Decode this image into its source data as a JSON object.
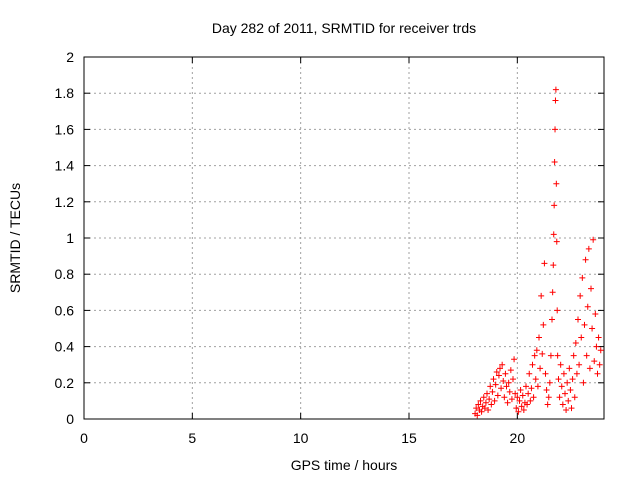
{
  "chart_data": {
    "type": "scatter",
    "title": "Day 282 of 2011, SRMTID for receiver trds",
    "xlabel": "GPS time / hours",
    "ylabel": "SRMTID / TECUs",
    "xlim": [
      0,
      24
    ],
    "ylim": [
      0,
      2
    ],
    "xticks": [
      0,
      5,
      10,
      15,
      20
    ],
    "yticks": [
      0,
      0.2,
      0.4,
      0.6,
      0.8,
      1,
      1.2,
      1.4,
      1.6,
      1.8,
      2
    ],
    "xtick_labels": [
      "0",
      "5",
      "10",
      "15",
      "20"
    ],
    "ytick_labels": [
      "0",
      "0.2",
      "0.4",
      "0.6",
      "0.8",
      "1",
      "1.2",
      "1.4",
      "1.6",
      "1.8",
      "2"
    ],
    "grid": true,
    "marker": "plus",
    "series": [
      {
        "color": "#ff0000",
        "points": [
          [
            18.05,
            0.03
          ],
          [
            18.1,
            0.06
          ],
          [
            18.15,
            0.02
          ],
          [
            18.2,
            0.08
          ],
          [
            18.25,
            0.05
          ],
          [
            18.3,
            0.1
          ],
          [
            18.35,
            0.04
          ],
          [
            18.4,
            0.07
          ],
          [
            18.45,
            0.12
          ],
          [
            18.5,
            0.06
          ],
          [
            18.55,
            0.09
          ],
          [
            18.6,
            0.14
          ],
          [
            18.65,
            0.05
          ],
          [
            18.7,
            0.11
          ],
          [
            18.75,
            0.18
          ],
          [
            18.8,
            0.08
          ],
          [
            18.85,
            0.15
          ],
          [
            18.9,
            0.22
          ],
          [
            18.95,
            0.1
          ],
          [
            19.0,
            0.19
          ],
          [
            19.05,
            0.26
          ],
          [
            19.1,
            0.13
          ],
          [
            19.15,
            0.24
          ],
          [
            19.2,
            0.28
          ],
          [
            19.25,
            0.17
          ],
          [
            19.3,
            0.3
          ],
          [
            19.35,
            0.21
          ],
          [
            19.4,
            0.12
          ],
          [
            19.45,
            0.25
          ],
          [
            19.5,
            0.18
          ],
          [
            19.55,
            0.09
          ],
          [
            19.6,
            0.2
          ],
          [
            19.65,
            0.15
          ],
          [
            19.7,
            0.27
          ],
          [
            19.75,
            0.11
          ],
          [
            19.8,
            0.22
          ],
          [
            19.85,
            0.33
          ],
          [
            19.9,
            0.14
          ],
          [
            19.95,
            0.06
          ],
          [
            20.0,
            0.12
          ],
          [
            20.05,
            0.04
          ],
          [
            20.1,
            0.1
          ],
          [
            20.15,
            0.16
          ],
          [
            20.2,
            0.07
          ],
          [
            20.25,
            0.13
          ],
          [
            20.3,
            0.05
          ],
          [
            20.35,
            0.09
          ],
          [
            20.4,
            0.18
          ],
          [
            20.45,
            0.08
          ],
          [
            20.5,
            0.14
          ],
          [
            20.55,
            0.25
          ],
          [
            20.6,
            0.1
          ],
          [
            20.65,
            0.17
          ],
          [
            20.7,
            0.3
          ],
          [
            20.75,
            0.12
          ],
          [
            20.8,
            0.35
          ],
          [
            20.85,
            0.22
          ],
          [
            20.9,
            0.38
          ],
          [
            20.95,
            0.18
          ],
          [
            21.0,
            0.45
          ],
          [
            21.05,
            0.28
          ],
          [
            21.1,
            0.68
          ],
          [
            21.15,
            0.36
          ],
          [
            21.2,
            0.52
          ],
          [
            21.25,
            0.86
          ],
          [
            21.3,
            0.25
          ],
          [
            21.35,
            0.16
          ],
          [
            21.4,
            0.08
          ],
          [
            21.45,
            0.12
          ],
          [
            21.5,
            0.2
          ],
          [
            21.55,
            0.35
          ],
          [
            21.6,
            0.55
          ],
          [
            21.63,
            0.7
          ],
          [
            21.66,
            0.85
          ],
          [
            21.68,
            1.02
          ],
          [
            21.7,
            1.18
          ],
          [
            21.72,
            1.42
          ],
          [
            21.74,
            1.6
          ],
          [
            21.76,
            1.76
          ],
          [
            21.78,
            1.82
          ],
          [
            21.8,
            1.3
          ],
          [
            21.82,
            0.98
          ],
          [
            21.84,
            0.6
          ],
          [
            21.86,
            0.35
          ],
          [
            21.9,
            0.22
          ],
          [
            21.95,
            0.12
          ],
          [
            22.0,
            0.3
          ],
          [
            22.05,
            0.18
          ],
          [
            22.1,
            0.08
          ],
          [
            22.15,
            0.25
          ],
          [
            22.2,
            0.14
          ],
          [
            22.25,
            0.05
          ],
          [
            22.3,
            0.2
          ],
          [
            22.35,
            0.1
          ],
          [
            22.4,
            0.28
          ],
          [
            22.45,
            0.16
          ],
          [
            22.5,
            0.06
          ],
          [
            22.55,
            0.22
          ],
          [
            22.6,
            0.35
          ],
          [
            22.65,
            0.12
          ],
          [
            22.7,
            0.42
          ],
          [
            22.75,
            0.25
          ],
          [
            22.8,
            0.55
          ],
          [
            22.85,
            0.3
          ],
          [
            22.9,
            0.68
          ],
          [
            22.95,
            0.45
          ],
          [
            23.0,
            0.78
          ],
          [
            23.05,
            0.2
          ],
          [
            23.1,
            0.52
          ],
          [
            23.15,
            0.88
          ],
          [
            23.2,
            0.35
          ],
          [
            23.25,
            0.62
          ],
          [
            23.3,
            0.94
          ],
          [
            23.35,
            0.28
          ],
          [
            23.4,
            0.72
          ],
          [
            23.45,
            0.5
          ],
          [
            23.5,
            0.99
          ],
          [
            23.55,
            0.32
          ],
          [
            23.6,
            0.58
          ],
          [
            23.65,
            0.4
          ],
          [
            23.7,
            0.25
          ],
          [
            23.75,
            0.45
          ],
          [
            23.8,
            0.3
          ],
          [
            23.85,
            0.38
          ]
        ]
      }
    ]
  }
}
